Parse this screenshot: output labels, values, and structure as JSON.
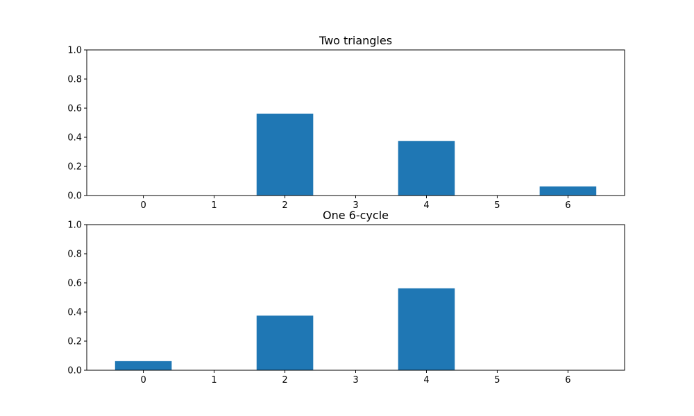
{
  "chart_data": [
    {
      "type": "bar",
      "title": "Two triangles",
      "xlabel": "",
      "ylabel": "",
      "categories": [
        "0",
        "1",
        "2",
        "3",
        "4",
        "5",
        "6"
      ],
      "values": [
        0,
        0,
        0.5625,
        0,
        0.375,
        0,
        0.0625
      ],
      "ylim": [
        0,
        1
      ],
      "yticks": [
        "0.0",
        "0.2",
        "0.4",
        "0.6",
        "0.8",
        "1.0"
      ],
      "grid": false,
      "color": "#1f77b4"
    },
    {
      "type": "bar",
      "title": "One 6-cycle",
      "xlabel": "",
      "ylabel": "",
      "categories": [
        "0",
        "1",
        "2",
        "3",
        "4",
        "5",
        "6"
      ],
      "values": [
        0.0625,
        0,
        0.375,
        0,
        0.5625,
        0,
        0
      ],
      "ylim": [
        0,
        1
      ],
      "yticks": [
        "0.0",
        "0.2",
        "0.4",
        "0.6",
        "0.8",
        "1.0"
      ],
      "grid": false,
      "color": "#1f77b4"
    }
  ]
}
